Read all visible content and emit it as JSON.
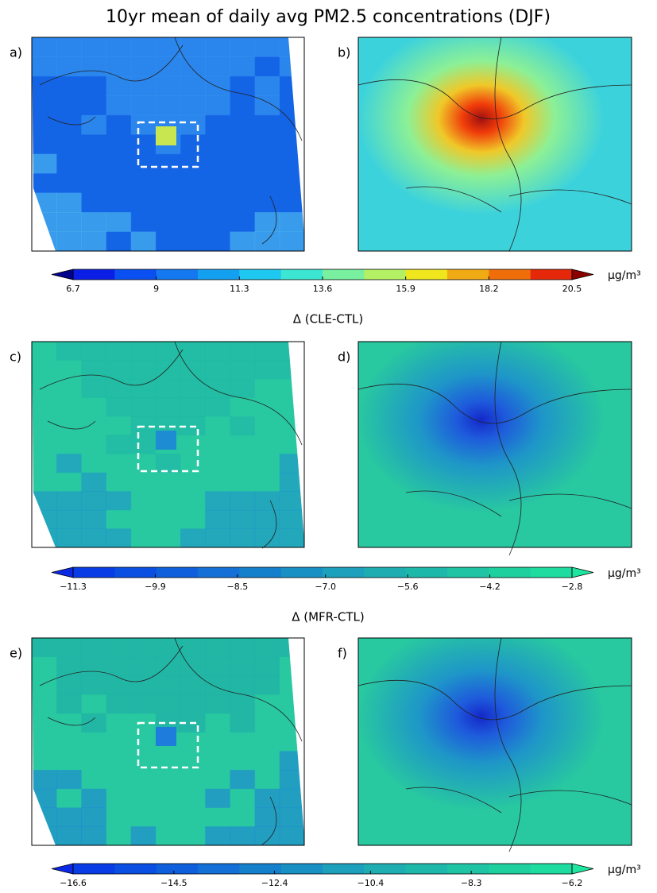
{
  "title": "10yr mean of daily avg PM2.5 concentrations (DJF)",
  "unit": "μg/m³",
  "rows": [
    {
      "panels": [
        "a)",
        "b)"
      ],
      "colorbar": {
        "lim": [
          6.7,
          20.5
        ],
        "ticks": [
          6.7,
          9.0,
          11.3,
          13.6,
          15.9,
          18.2,
          20.5
        ],
        "colors": [
          "#0a1ee6",
          "#0a50f0",
          "#1478f0",
          "#14a0f0",
          "#1ec8f0",
          "#3ce6d2",
          "#78f0a0",
          "#b4f064",
          "#f0e61e",
          "#f0aa14",
          "#f06e0a",
          "#e6280a"
        ],
        "under_color": "#00008c",
        "over_color": "#8c0000"
      }
    },
    {
      "heading": "Δ (CLE-CTL)",
      "panels": [
        "c)",
        "d)"
      ],
      "colorbar": {
        "lim": [
          -11.3,
          -2.8
        ],
        "ticks": [
          {
            "value": -11.3,
            "label": "−11.3"
          },
          {
            "value": -9.9,
            "label": "−9.9"
          },
          {
            "value": -8.5,
            "label": "−8.5"
          },
          {
            "value": -7.0,
            "label": "−7.0"
          },
          {
            "value": -5.6,
            "label": "−5.6"
          },
          {
            "value": -4.2,
            "label": "−4.2"
          },
          {
            "value": -2.8,
            "label": "−2.8"
          }
        ],
        "colors": [
          "#0a3ce6",
          "#0a4ee2",
          "#0f5fdc",
          "#1470d6",
          "#1480cc",
          "#1890c4",
          "#1ca0bc",
          "#1eaeb2",
          "#1eb8aa",
          "#1ec4a4",
          "#1ed09e",
          "#1edca0"
        ],
        "under_color": "#0a28e6",
        "over_color": "#1ee6a0"
      }
    },
    {
      "heading": "Δ (MFR-CTL)",
      "panels": [
        "e)",
        "f)"
      ],
      "colorbar": {
        "lim": [
          -16.6,
          -6.2
        ],
        "ticks": [
          {
            "value": -16.6,
            "label": "−16.6"
          },
          {
            "value": -14.5,
            "label": "−14.5"
          },
          {
            "value": -12.4,
            "label": "−12.4"
          },
          {
            "value": -10.4,
            "label": "−10.4"
          },
          {
            "value": -8.3,
            "label": "−8.3"
          },
          {
            "value": -6.2,
            "label": "−6.2"
          }
        ],
        "colors": [
          "#0a3ce6",
          "#0a4ee2",
          "#0f5fdc",
          "#1470d6",
          "#1480cc",
          "#1890c4",
          "#1ca0bc",
          "#1eaeb2",
          "#1eb8aa",
          "#1ec4a4",
          "#1ed09e",
          "#1edca0"
        ],
        "under_color": "#0a28e6",
        "over_color": "#1ee6a0"
      }
    }
  ]
}
